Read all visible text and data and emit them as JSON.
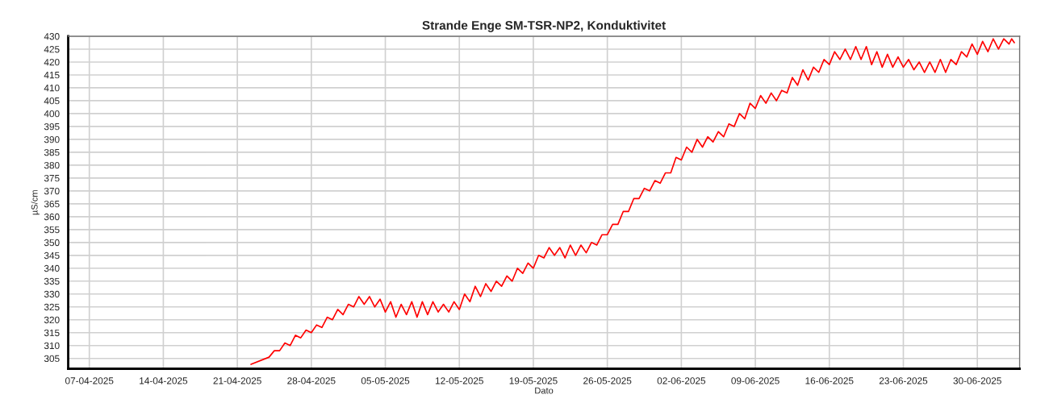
{
  "chart_data": {
    "type": "line",
    "title": "Strande Enge SM-TSR-NP2, Konduktivitet",
    "xlabel": "Dato",
    "ylabel": "µS/cm",
    "xlim": [
      "2025-04-05",
      "2025-07-04"
    ],
    "xticks": [
      {
        "value": "2025-04-07",
        "label": "07-04-2025"
      },
      {
        "value": "2025-04-14",
        "label": "14-04-2025"
      },
      {
        "value": "2025-04-21",
        "label": "21-04-2025"
      },
      {
        "value": "2025-04-28",
        "label": "28-04-2025"
      },
      {
        "value": "2025-05-05",
        "label": "05-05-2025"
      },
      {
        "value": "2025-05-12",
        "label": "12-05-2025"
      },
      {
        "value": "2025-05-19",
        "label": "19-05-2025"
      },
      {
        "value": "2025-05-26",
        "label": "26-05-2025"
      },
      {
        "value": "2025-06-02",
        "label": "02-06-2025"
      },
      {
        "value": "2025-06-09",
        "label": "09-06-2025"
      },
      {
        "value": "2025-06-16",
        "label": "16-06-2025"
      },
      {
        "value": "2025-06-23",
        "label": "23-06-2025"
      },
      {
        "value": "2025-06-30",
        "label": "30-06-2025"
      }
    ],
    "ylim": [
      301,
      430
    ],
    "yticks": [
      305,
      310,
      315,
      320,
      325,
      330,
      335,
      340,
      345,
      350,
      355,
      360,
      365,
      370,
      375,
      380,
      385,
      390,
      395,
      400,
      405,
      410,
      415,
      420,
      425,
      430
    ],
    "grid": true,
    "marker": "none",
    "line_style": "solid",
    "series": [
      {
        "color": "#ff0000",
        "x": [
          "2025-04-22T07:00",
          "2025-04-24T00:00",
          "2025-04-24T12:00",
          "2025-04-25T00:00",
          "2025-04-25T12:00",
          "2025-04-26T00:00",
          "2025-04-26T12:00",
          "2025-04-27T00:00",
          "2025-04-27T12:00",
          "2025-04-28T00:00",
          "2025-04-28T12:00",
          "2025-04-29T00:00",
          "2025-04-29T12:00",
          "2025-04-30T00:00",
          "2025-04-30T12:00",
          "2025-05-01T00:00",
          "2025-05-01T12:00",
          "2025-05-02T00:00",
          "2025-05-02T12:00",
          "2025-05-03T00:00",
          "2025-05-03T12:00",
          "2025-05-04T00:00",
          "2025-05-04T12:00",
          "2025-05-05T00:00",
          "2025-05-05T12:00",
          "2025-05-06T00:00",
          "2025-05-06T12:00",
          "2025-05-07T00:00",
          "2025-05-07T12:00",
          "2025-05-08T00:00",
          "2025-05-08T12:00",
          "2025-05-09T00:00",
          "2025-05-09T12:00",
          "2025-05-10T00:00",
          "2025-05-10T12:00",
          "2025-05-11T00:00",
          "2025-05-11T12:00",
          "2025-05-12T00:00",
          "2025-05-12T12:00",
          "2025-05-13T00:00",
          "2025-05-13T12:00",
          "2025-05-14T00:00",
          "2025-05-14T12:00",
          "2025-05-15T00:00",
          "2025-05-15T12:00",
          "2025-05-16T00:00",
          "2025-05-16T12:00",
          "2025-05-17T00:00",
          "2025-05-17T12:00",
          "2025-05-18T00:00",
          "2025-05-18T12:00",
          "2025-05-19T00:00",
          "2025-05-19T12:00",
          "2025-05-20T00:00",
          "2025-05-20T12:00",
          "2025-05-21T00:00",
          "2025-05-21T12:00",
          "2025-05-22T00:00",
          "2025-05-22T12:00",
          "2025-05-23T00:00",
          "2025-05-23T12:00",
          "2025-05-24T00:00",
          "2025-05-24T12:00",
          "2025-05-25T00:00",
          "2025-05-25T12:00",
          "2025-05-26T00:00",
          "2025-05-26T12:00",
          "2025-05-27T00:00",
          "2025-05-27T12:00",
          "2025-05-28T00:00",
          "2025-05-28T12:00",
          "2025-05-29T00:00",
          "2025-05-29T12:00",
          "2025-05-30T00:00",
          "2025-05-30T12:00",
          "2025-05-31T00:00",
          "2025-05-31T12:00",
          "2025-06-01T00:00",
          "2025-06-01T12:00",
          "2025-06-02T00:00",
          "2025-06-02T12:00",
          "2025-06-03T00:00",
          "2025-06-03T12:00",
          "2025-06-04T00:00",
          "2025-06-04T12:00",
          "2025-06-05T00:00",
          "2025-06-05T12:00",
          "2025-06-06T00:00",
          "2025-06-06T12:00",
          "2025-06-07T00:00",
          "2025-06-07T12:00",
          "2025-06-08T00:00",
          "2025-06-08T12:00",
          "2025-06-09T00:00",
          "2025-06-09T12:00",
          "2025-06-10T00:00",
          "2025-06-10T12:00",
          "2025-06-11T00:00",
          "2025-06-11T12:00",
          "2025-06-12T00:00",
          "2025-06-12T12:00",
          "2025-06-13T00:00",
          "2025-06-13T12:00",
          "2025-06-14T00:00",
          "2025-06-14T12:00",
          "2025-06-15T00:00",
          "2025-06-15T12:00",
          "2025-06-16T00:00",
          "2025-06-16T12:00",
          "2025-06-17T00:00",
          "2025-06-17T12:00",
          "2025-06-18T00:00",
          "2025-06-18T12:00",
          "2025-06-19T00:00",
          "2025-06-19T12:00",
          "2025-06-20T00:00",
          "2025-06-20T12:00",
          "2025-06-21T00:00",
          "2025-06-21T12:00",
          "2025-06-22T00:00",
          "2025-06-22T12:00",
          "2025-06-23T00:00",
          "2025-06-23T12:00",
          "2025-06-24T00:00",
          "2025-06-24T12:00",
          "2025-06-25T00:00",
          "2025-06-25T12:00",
          "2025-06-26T00:00",
          "2025-06-26T12:00",
          "2025-06-27T00:00",
          "2025-06-27T12:00",
          "2025-06-28T00:00",
          "2025-06-28T12:00",
          "2025-06-29T00:00",
          "2025-06-29T12:00",
          "2025-06-30T00:00",
          "2025-06-30T12:00",
          "2025-07-01T00:00",
          "2025-07-01T12:00",
          "2025-07-02T00:00",
          "2025-07-02T12:00",
          "2025-07-03T00:00",
          "2025-07-03T06:00",
          "2025-07-03T12:00"
        ],
        "values": [
          302.7,
          305.5,
          308,
          308,
          311,
          310,
          314,
          313,
          316,
          315,
          318,
          317,
          321,
          320,
          324,
          322,
          326,
          325,
          329,
          326,
          329,
          325,
          328,
          323,
          327,
          321,
          326,
          322,
          327,
          321,
          327,
          322,
          327,
          323,
          326,
          323,
          327,
          324,
          330,
          327,
          333,
          329,
          334,
          331,
          335,
          333,
          337,
          335,
          340,
          338,
          342,
          340,
          345,
          344,
          348,
          345,
          348,
          344,
          349,
          345,
          349,
          346,
          350,
          349,
          353,
          353,
          357,
          357,
          362,
          362,
          367,
          367,
          371,
          370,
          374,
          373,
          377,
          377,
          383,
          382,
          387,
          385,
          390,
          387,
          391,
          389,
          393,
          391,
          396,
          395,
          400,
          398,
          404,
          402,
          407,
          404,
          408,
          405,
          409,
          408,
          414,
          411,
          417,
          413,
          418,
          416,
          421,
          419,
          424,
          421,
          425,
          421,
          426,
          421,
          426,
          419,
          424,
          418,
          423,
          418,
          422,
          418,
          421,
          417,
          420,
          416,
          420,
          416,
          421,
          416,
          421,
          419,
          424,
          422,
          427,
          423,
          428,
          424,
          429,
          425,
          429,
          427,
          429,
          427.5
        ]
      }
    ]
  }
}
